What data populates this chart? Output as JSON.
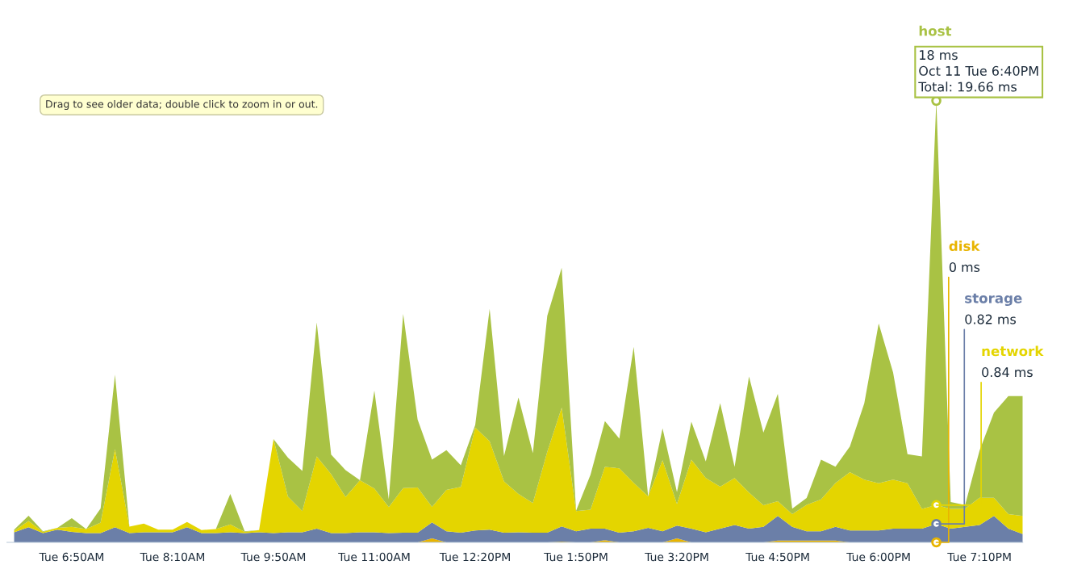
{
  "chart_data": {
    "type": "area",
    "stacked": true,
    "grid": false,
    "legend": false,
    "tick_labels": "x",
    "categories": [
      null,
      null,
      null,
      null,
      "Tue 6:50AM",
      null,
      null,
      null,
      null,
      null,
      null,
      "Tue 8:10AM",
      null,
      null,
      null,
      null,
      null,
      null,
      "Tue 9:50AM",
      null,
      null,
      null,
      null,
      null,
      null,
      "Tue 11:00AM",
      null,
      null,
      null,
      null,
      null,
      null,
      "Tue 12:20PM",
      null,
      null,
      null,
      null,
      null,
      null,
      "Tue 1:50PM",
      null,
      null,
      null,
      null,
      null,
      null,
      "Tue 3:20PM",
      null,
      null,
      null,
      null,
      null,
      null,
      "Tue 4:50PM",
      null,
      null,
      null,
      null,
      null,
      null,
      "Tue 6:00PM",
      null,
      null,
      null,
      null,
      null,
      null,
      "Tue 7:10PM",
      null,
      null,
      null
    ],
    "series": [
      {
        "name": "disk",
        "color": "#e8b400",
        "values": [
          0,
          0,
          0,
          0,
          0,
          0,
          0,
          0,
          0,
          0,
          0,
          0,
          0,
          0,
          0,
          0,
          0,
          0,
          0,
          0,
          0,
          0,
          0,
          0,
          0,
          0,
          0,
          0,
          0,
          0.18,
          0,
          0,
          0,
          0,
          0,
          0,
          0,
          0,
          0.04,
          0,
          0,
          0.1,
          0,
          0,
          0,
          0,
          0.18,
          0,
          0,
          0,
          0,
          0,
          0,
          0.08,
          0.08,
          0.08,
          0.08,
          0.08,
          0,
          0,
          0,
          0,
          0,
          0,
          0,
          0,
          0,
          0,
          0,
          0,
          0
        ],
        "value_labels": [
          null,
          null,
          null,
          null,
          null,
          null,
          null,
          null,
          null,
          null,
          null,
          null,
          null,
          null,
          null,
          null,
          null,
          null,
          null,
          null,
          null,
          null,
          null,
          null,
          null,
          null,
          null,
          null,
          null,
          null,
          null,
          null,
          null,
          null,
          null,
          null,
          null,
          null,
          null,
          null,
          null,
          null,
          null,
          null,
          null,
          null,
          null,
          null,
          null,
          null,
          null,
          null,
          null,
          null,
          null,
          null,
          null,
          null,
          null,
          null,
          null,
          null,
          null,
          null,
          "0 ms",
          null,
          null,
          null,
          null,
          null,
          null
        ]
      },
      {
        "name": "storage",
        "color": "#6b7fa8",
        "values": [
          0.45,
          0.67,
          0.41,
          0.57,
          0.47,
          0.41,
          0.41,
          0.67,
          0.41,
          0.45,
          0.45,
          0.45,
          0.67,
          0.41,
          0.41,
          0.45,
          0.41,
          0.45,
          0.41,
          0.45,
          0.45,
          0.61,
          0.41,
          0.41,
          0.45,
          0.45,
          0.41,
          0.43,
          0.43,
          0.71,
          0.49,
          0.43,
          0.53,
          0.57,
          0.43,
          0.45,
          0.43,
          0.43,
          0.67,
          0.49,
          0.61,
          0.51,
          0.43,
          0.49,
          0.65,
          0.49,
          0.57,
          0.61,
          0.45,
          0.61,
          0.77,
          0.61,
          0.69,
          1.1,
          0.61,
          0.41,
          0.41,
          0.61,
          0.53,
          0.53,
          0.53,
          0.61,
          0.61,
          0.61,
          0.82,
          0.61,
          0.69,
          0.77,
          1.18,
          0.61,
          0.37
        ],
        "value_labels": [
          null,
          null,
          null,
          null,
          null,
          null,
          null,
          null,
          null,
          null,
          null,
          null,
          null,
          null,
          null,
          null,
          null,
          null,
          null,
          null,
          null,
          null,
          null,
          null,
          null,
          null,
          null,
          null,
          null,
          null,
          null,
          null,
          null,
          null,
          null,
          null,
          null,
          null,
          null,
          null,
          null,
          null,
          null,
          null,
          null,
          null,
          null,
          null,
          null,
          null,
          null,
          null,
          null,
          null,
          null,
          null,
          null,
          null,
          null,
          null,
          null,
          null,
          null,
          null,
          "0.82 ms",
          null,
          null,
          null,
          null,
          null,
          null
        ]
      },
      {
        "name": "network",
        "color": "#e4d500",
        "values": [
          0.06,
          0.28,
          0.06,
          0.08,
          0.22,
          0.18,
          0.47,
          3.48,
          0.29,
          0.39,
          0.12,
          0.12,
          0.24,
          0.14,
          0.18,
          0.35,
          0.06,
          0.1,
          4.19,
          1.59,
          0.94,
          3.22,
          2.63,
          1.61,
          2.32,
          1.95,
          1.16,
          1.99,
          2.01,
          0.69,
          1.85,
          2.04,
          4.58,
          3.93,
          2.28,
          1.71,
          1.32,
          3.6,
          5.29,
          0.9,
          0.85,
          2.75,
          2.87,
          2.16,
          1.4,
          3.17,
          0.96,
          3.07,
          2.42,
          1.87,
          2.1,
          1.61,
          0.96,
          0.65,
          0.57,
          1.18,
          1.42,
          1.95,
          2.6,
          2.26,
          2.1,
          2.18,
          2.02,
          0.88,
          0.84,
          0.88,
          0.81,
          1.22,
          0.81,
          0.65,
          0.81
        ],
        "value_labels": [
          null,
          null,
          null,
          null,
          null,
          null,
          null,
          null,
          null,
          null,
          null,
          null,
          null,
          null,
          null,
          null,
          null,
          null,
          null,
          null,
          null,
          null,
          null,
          null,
          null,
          null,
          null,
          null,
          null,
          null,
          null,
          null,
          null,
          null,
          null,
          null,
          null,
          null,
          null,
          null,
          null,
          null,
          null,
          null,
          null,
          null,
          null,
          null,
          null,
          null,
          null,
          null,
          null,
          null,
          null,
          null,
          null,
          null,
          null,
          null,
          null,
          null,
          null,
          null,
          "0.84 ms",
          null,
          null,
          null,
          null,
          null,
          null
        ]
      },
      {
        "name": "host",
        "color": "#a9c244",
        "values": [
          0.06,
          0.24,
          0.02,
          0,
          0.39,
          0,
          0.63,
          3.32,
          0,
          0,
          0,
          0,
          0,
          0,
          0,
          1.36,
          0.02,
          0,
          0,
          1.73,
          1.79,
          5.96,
          0.87,
          1.2,
          0,
          4.36,
          0.35,
          7.75,
          3.03,
          2.1,
          1.77,
          0.96,
          0.12,
          5.9,
          1.14,
          4.29,
          2.22,
          6.06,
          6.23,
          0.02,
          1.55,
          2.04,
          1.32,
          6.06,
          0,
          1.42,
          0.53,
          1.69,
          0.73,
          3.72,
          0.49,
          5.17,
          3.24,
          4.78,
          0.24,
          0.31,
          1.77,
          0.73,
          1.14,
          3.4,
          7.12,
          4.78,
          1.3,
          2.34,
          18,
          0.31,
          0.16,
          2.1,
          3.79,
          5.25,
          5.33
        ],
        "value_labels": [
          null,
          null,
          null,
          null,
          null,
          null,
          null,
          null,
          null,
          null,
          null,
          null,
          null,
          null,
          null,
          null,
          null,
          null,
          null,
          null,
          null,
          null,
          null,
          null,
          null,
          null,
          null,
          null,
          null,
          null,
          null,
          null,
          null,
          null,
          null,
          null,
          null,
          null,
          null,
          null,
          null,
          null,
          null,
          null,
          null,
          null,
          null,
          null,
          null,
          null,
          null,
          null,
          null,
          null,
          null,
          null,
          null,
          null,
          null,
          null,
          null,
          null,
          null,
          null,
          "18 ms",
          null,
          null,
          null,
          null,
          null,
          null
        ]
      }
    ],
    "annotations": [
      "Drag to see older data; double click to zoom in or out.",
      "Oct 11 Tue 6:40PM",
      "Total: 19.66 ms"
    ]
  }
}
